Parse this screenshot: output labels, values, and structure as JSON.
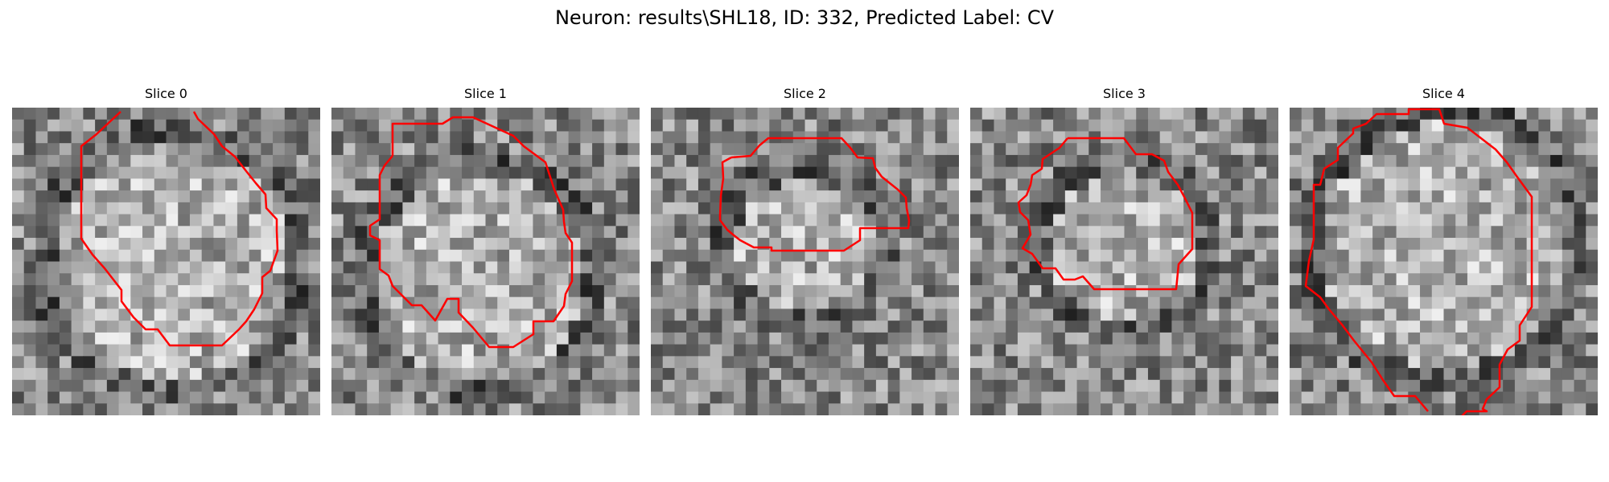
{
  "title": "Neuron: results\\SHL18, ID: 332, Predicted Label: CV",
  "panels": [
    {
      "title": "Slice 0",
      "seed": 11,
      "bright_center": [
        0.52,
        0.5
      ],
      "bright_radius": 0.38
    },
    {
      "title": "Slice 1",
      "seed": 23,
      "bright_center": [
        0.48,
        0.55
      ],
      "bright_radius": 0.34
    },
    {
      "title": "Slice 2",
      "seed": 37,
      "bright_center": [
        0.5,
        0.45
      ],
      "bright_radius": 0.22
    },
    {
      "title": "Slice 3",
      "seed": 41,
      "bright_center": [
        0.5,
        0.45
      ],
      "bright_radius": 0.24
    },
    {
      "title": "Slice 4",
      "seed": 59,
      "bright_center": [
        0.5,
        0.45
      ],
      "bright_radius": 0.4
    }
  ],
  "contour_color": "#ff0000",
  "colormap": "grayscale"
}
